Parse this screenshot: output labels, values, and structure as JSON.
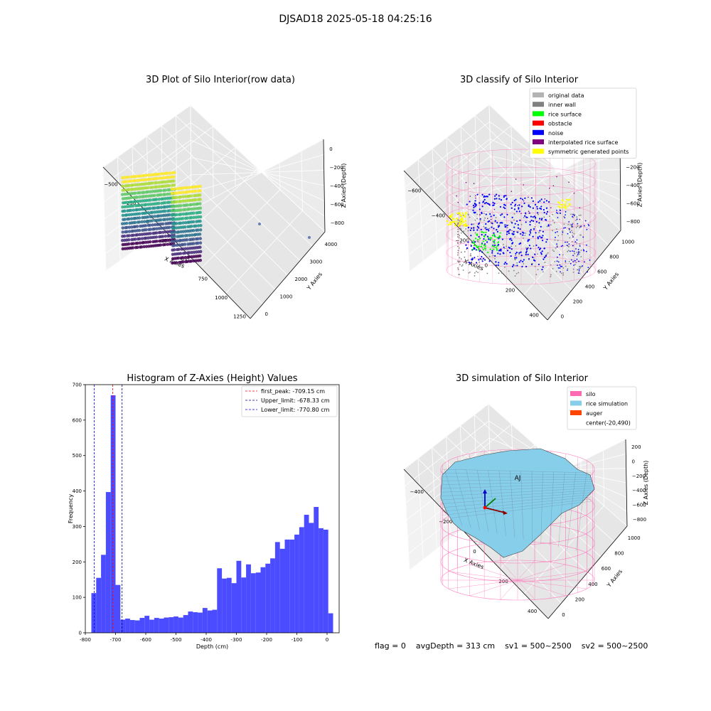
{
  "suptitle": "DJSAD18 2025-05-18 04:25:16",
  "footer": {
    "flag": "flag = 0",
    "avg_depth": "avgDepth = 313 cm",
    "sv1": "sv1 = 500~2500",
    "sv2": "sv2 = 500~2500"
  },
  "chart_data": [
    {
      "type": "scatter",
      "panel": "top-left",
      "title": "3D Plot of Silo Interior(row data)",
      "xlabel": "X Axies",
      "ylabel": "Y Axies",
      "zlabel": "Z Axies (Depth)",
      "xticks": [
        "−500",
        "−250",
        "0",
        "250",
        "500",
        "750",
        "1000",
        "1250"
      ],
      "yticks": [
        "0",
        "1000",
        "2000",
        "3000",
        "4000"
      ],
      "zticks": [
        "0",
        "−200",
        "−400",
        "−600",
        "−800"
      ],
      "colormap": "viridis",
      "grid": true
    },
    {
      "type": "scatter",
      "panel": "top-right",
      "title": "3D classify of Silo Interior",
      "xlabel": "X Axies",
      "ylabel": "Y Axies",
      "zlabel": "Z Axies (Depth)",
      "xticks": [
        "−600",
        "−400",
        "−200",
        "0",
        "200",
        "400"
      ],
      "yticks": [
        "0",
        "200",
        "400",
        "600",
        "800",
        "1000"
      ],
      "zticks": [
        "0",
        "−200",
        "−400",
        "−600",
        "−800"
      ],
      "legend_position": "top-right",
      "legend": [
        {
          "label": "original data",
          "color": "#b3b3b3"
        },
        {
          "label": "inner wall",
          "color": "#808080"
        },
        {
          "label": "rice surface",
          "color": "#00ff00"
        },
        {
          "label": "obstacle",
          "color": "#ff0000"
        },
        {
          "label": "noise",
          "color": "#0000ff"
        },
        {
          "label": "interpolated rice surface",
          "color": "#800080"
        },
        {
          "label": "symmetric generated points",
          "color": "#ffff00"
        }
      ],
      "grid": true
    },
    {
      "type": "bar",
      "panel": "bottom-left",
      "title": "Histogram of Z-Axies (Height) Values",
      "xlabel": "Depth (cm)",
      "ylabel": "Frequency",
      "xlim": [
        -800,
        40
      ],
      "ylim": [
        0,
        700
      ],
      "xticks": [
        -800,
        -700,
        -600,
        -500,
        -400,
        -300,
        -200,
        -100,
        0
      ],
      "yticks": [
        0,
        100,
        200,
        300,
        400,
        500,
        600,
        700
      ],
      "bin_start": -780,
      "bin_width": 16,
      "bar_color": "#4b4bff",
      "values": [
        112,
        155,
        220,
        397,
        670,
        135,
        37,
        40,
        36,
        35,
        42,
        48,
        37,
        42,
        40,
        43,
        44,
        46,
        43,
        50,
        60,
        58,
        57,
        70,
        63,
        65,
        182,
        153,
        155,
        140,
        203,
        156,
        193,
        168,
        170,
        185,
        195,
        210,
        256,
        237,
        263,
        263,
        277,
        298,
        333,
        310,
        355,
        295,
        291,
        55
      ],
      "vlines": [
        {
          "label": "first_peak: -709.15 cm",
          "x": -709.15,
          "color": "#ff0000"
        },
        {
          "label": "Upper_limit: -678.33 cm",
          "x": -678.33,
          "color": "#00008b"
        },
        {
          "label": "Lower_limit: -770.80 cm",
          "x": -770.8,
          "color": "#0000ff"
        }
      ],
      "legend_position": "top-right",
      "grid": false
    },
    {
      "type": "surface",
      "panel": "bottom-right",
      "title": "3D simulation of Silo Interior",
      "xlabel": "X Axies",
      "ylabel": "Y Axies",
      "zlabel": "Z Axies (Depth)",
      "xticks": [
        "−400",
        "−200",
        "0",
        "200",
        "400"
      ],
      "yticks": [
        "0",
        "200",
        "400",
        "600",
        "800",
        "1000"
      ],
      "zticks": [
        "200",
        "0",
        "−200",
        "−400",
        "−600",
        "−800"
      ],
      "annotation": "AJ",
      "legend_position": "top-right",
      "legend": [
        {
          "label": "silo",
          "color": "#ff69b4"
        },
        {
          "label": "rice simulation",
          "color": "#87ceeb"
        },
        {
          "label": "auger",
          "color": "#ff4500"
        },
        {
          "label": "center(-20,490)",
          "color": ""
        }
      ],
      "grid": true
    }
  ]
}
